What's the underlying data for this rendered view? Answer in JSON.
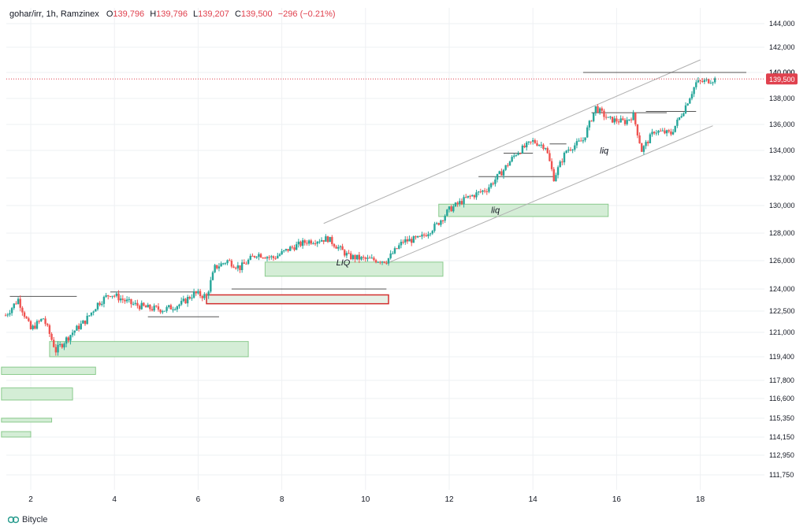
{
  "header": {
    "symbol": "gohar/irr",
    "interval": "1h",
    "exchange": "Ramzinex",
    "open_label": "O",
    "open": "139,796",
    "high_label": "H",
    "high": "139,796",
    "low_label": "L",
    "low": "139,207",
    "close_label": "C",
    "close": "139,500",
    "change": "−296 (−0.21%)"
  },
  "brand": {
    "name": "Bitycle",
    "icon": "bitycle-logo-icon"
  },
  "colors": {
    "up": "#26a69a",
    "down": "#ef5350",
    "price_line": "#e0414e",
    "demand_fill": "#d4edd6",
    "demand_stroke": "#4caf50",
    "supply_fill": "#e6f0e6",
    "supply_stroke": "#d32f2f",
    "channel": "#b0b0b0",
    "grid": "#eef0f3"
  },
  "chart_data": {
    "type": "candlestick",
    "y_ticks": [
      "144,000",
      "142,000",
      "140,000",
      "138,000",
      "136,000",
      "134,000",
      "132,000",
      "130,000",
      "128,000",
      "126,000",
      "124,000",
      "122,500",
      "121,000",
      "119,400",
      "117,800",
      "116,600",
      "115,350",
      "114,150",
      "112,950",
      "111,750"
    ],
    "x_ticks": [
      "2",
      "4",
      "6",
      "8",
      "10",
      "12",
      "14",
      "16",
      "18"
    ],
    "last_price_label": "139,500",
    "resistance_label": "140,000",
    "anchors": [
      [
        1.4,
        122200
      ],
      [
        1.7,
        123300
      ],
      [
        2.0,
        121200
      ],
      [
        2.3,
        122000
      ],
      [
        2.6,
        119800
      ],
      [
        3.0,
        121000
      ],
      [
        3.3,
        121800
      ],
      [
        3.6,
        123000
      ],
      [
        3.9,
        123700
      ],
      [
        4.4,
        123000
      ],
      [
        4.8,
        122700
      ],
      [
        5.2,
        122600
      ],
      [
        5.6,
        123000
      ],
      [
        5.9,
        123700
      ],
      [
        6.2,
        123500
      ],
      [
        6.4,
        125500
      ],
      [
        6.7,
        126000
      ],
      [
        7.0,
        125500
      ],
      [
        7.4,
        126500
      ],
      [
        7.8,
        126200
      ],
      [
        8.2,
        126900
      ],
      [
        8.6,
        127400
      ],
      [
        9.1,
        127600
      ],
      [
        9.6,
        126300
      ],
      [
        10.0,
        126100
      ],
      [
        10.5,
        126000
      ],
      [
        10.9,
        127400
      ],
      [
        11.3,
        127600
      ],
      [
        11.7,
        128600
      ],
      [
        12.0,
        129700
      ],
      [
        12.4,
        130500
      ],
      [
        12.9,
        131200
      ],
      [
        13.3,
        132600
      ],
      [
        13.6,
        133800
      ],
      [
        14.0,
        134700
      ],
      [
        14.3,
        134300
      ],
      [
        14.5,
        132000
      ],
      [
        14.8,
        134000
      ],
      [
        15.2,
        134800
      ],
      [
        15.5,
        137300
      ],
      [
        15.8,
        136400
      ],
      [
        16.2,
        136200
      ],
      [
        16.4,
        136700
      ],
      [
        16.6,
        134000
      ],
      [
        16.9,
        135500
      ],
      [
        17.3,
        135300
      ],
      [
        17.6,
        137100
      ],
      [
        17.9,
        139200
      ],
      [
        18.4,
        139500
      ]
    ],
    "channel": [
      [
        [
          9.0,
          128700
        ],
        [
          18.0,
          141000
        ]
      ],
      [
        [
          10.5,
          125800
        ],
        [
          18.3,
          135900
        ]
      ]
    ],
    "demand_zones": [
      [
        7.6,
        11.85,
        124900,
        125900
      ],
      [
        11.75,
        15.8,
        129200,
        130100
      ],
      [
        2.45,
        7.2,
        119400,
        120400
      ],
      [
        1.3,
        3.55,
        118200,
        118700
      ],
      [
        1.3,
        3.0,
        116500,
        117300
      ],
      [
        1.3,
        2.5,
        115100,
        115350
      ],
      [
        1.3,
        2.0,
        114150,
        114500
      ]
    ],
    "supply_zones": [
      [
        6.2,
        10.55,
        123000,
        123600
      ]
    ],
    "lines": [
      [
        1.5,
        3.1,
        123500
      ],
      [
        3.9,
        5.9,
        123800
      ],
      [
        4.8,
        6.5,
        122100
      ],
      [
        6.8,
        10.5,
        124000
      ],
      [
        12.7,
        14.5,
        132100
      ],
      [
        13.3,
        14.0,
        133800
      ],
      [
        14.4,
        14.8,
        134500
      ],
      [
        15.4,
        17.2,
        136900
      ],
      [
        16.7,
        17.9,
        137000
      ],
      [
        15.2,
        19.1,
        140000
      ]
    ],
    "annotations": [
      {
        "text": "LIQ",
        "x": 9.3,
        "y": 125900
      },
      {
        "text": "liq",
        "x": 13.0,
        "y": 129700
      },
      {
        "text": "liq",
        "x": 15.6,
        "y": 134000
      }
    ]
  }
}
